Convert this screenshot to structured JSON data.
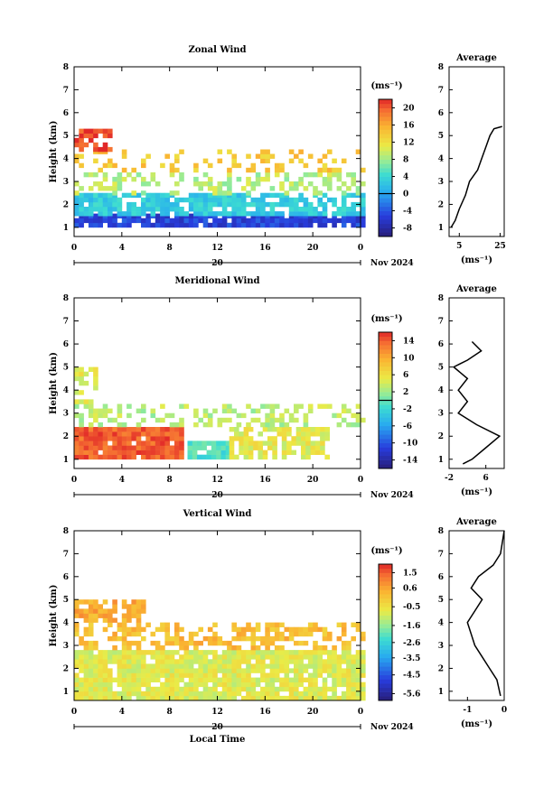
{
  "date_label": "Nov 2024",
  "date_day": "20",
  "xlabel": "Local Time",
  "ylabel": "Height (km)",
  "avg_title": "Average",
  "unit_label": "(ms⁻¹)",
  "x_ticks": [
    "0",
    "4",
    "8",
    "12",
    "16",
    "20",
    "0"
  ],
  "y_ticks": [
    "1",
    "2",
    "3",
    "4",
    "5",
    "6",
    "7",
    "8"
  ],
  "chart_data": [
    {
      "type": "heatmap",
      "title": "Zonal Wind",
      "xlabel": "",
      "ylabel": "Height (km)",
      "xlim": [
        0,
        24
      ],
      "ylim": [
        0.6,
        8
      ],
      "colorbar": {
        "ticks": [
          20,
          16,
          12,
          8,
          4,
          0,
          -4,
          -8
        ],
        "min": -10,
        "max": 22
      },
      "layers": [
        {
          "x": [
            0,
            24
          ],
          "y": [
            1.0,
            1.5
          ],
          "value": -5,
          "step": 0.4,
          "density": 0.9
        },
        {
          "x": [
            0,
            24
          ],
          "y": [
            1.5,
            2.4
          ],
          "value": 3,
          "step": 0.4,
          "density": 0.8
        },
        {
          "x": [
            0,
            24
          ],
          "y": [
            2.4,
            3.4
          ],
          "value": 9,
          "step": 0.4,
          "density": 0.35
        },
        {
          "x": [
            0,
            24
          ],
          "y": [
            3.4,
            4.3
          ],
          "value": 14,
          "step": 0.4,
          "density": 0.25
        },
        {
          "x": [
            0,
            3
          ],
          "y": [
            4.3,
            5.3
          ],
          "value": 21,
          "step": 0.4,
          "density": 0.6
        }
      ],
      "average_profile": {
        "xlim": [
          0,
          27
        ],
        "xticks": [
          5,
          25
        ],
        "height": [
          1.0,
          1.3,
          1.8,
          2.4,
          3.0,
          3.5,
          4.0,
          4.5,
          5.0,
          5.3,
          5.4
        ],
        "value": [
          1,
          3,
          5,
          8,
          10,
          14,
          16,
          18,
          20,
          22,
          26
        ]
      },
      "zero_line_in_colorbar": true
    },
    {
      "type": "heatmap",
      "title": "Meridional Wind",
      "xlabel": "",
      "ylabel": "Height (km)",
      "xlim": [
        0,
        24
      ],
      "ylim": [
        0.6,
        8
      ],
      "colorbar": {
        "ticks": [
          14,
          10,
          6,
          2,
          -2,
          -6,
          -10,
          -14
        ],
        "min": -16,
        "max": 16
      },
      "layers": [
        {
          "x": [
            0,
            9
          ],
          "y": [
            1.0,
            2.4
          ],
          "value": 14,
          "step": 0.4,
          "density": 0.9
        },
        {
          "x": [
            9.5,
            13
          ],
          "y": [
            1.0,
            1.6
          ],
          "value": -1,
          "step": 0.4,
          "density": 0.9
        },
        {
          "x": [
            13,
            21
          ],
          "y": [
            1.0,
            2.4
          ],
          "value": 5,
          "step": 0.4,
          "density": 0.7
        },
        {
          "x": [
            0,
            24
          ],
          "y": [
            2.4,
            3.4
          ],
          "value": 3,
          "step": 0.4,
          "density": 0.4
        },
        {
          "x": [
            0,
            2
          ],
          "y": [
            3.4,
            5.0
          ],
          "value": 5,
          "step": 0.4,
          "density": 0.5
        }
      ],
      "average_profile": {
        "xlim": [
          -2,
          10
        ],
        "xticks": [
          -2,
          6
        ],
        "height": [
          0.8,
          1.0,
          1.5,
          2.0,
          2.5,
          3.0,
          3.5,
          4.0,
          4.5,
          5.0,
          5.3,
          5.7,
          6.1
        ],
        "value": [
          1,
          3,
          6,
          9,
          4,
          0,
          2,
          0,
          2,
          -1,
          2,
          5,
          3
        ]
      },
      "zero_line_in_colorbar": true
    },
    {
      "type": "heatmap",
      "title": "Vertical Wind",
      "xlabel": "Local Time",
      "ylabel": "Height (km)",
      "xlim": [
        0,
        24
      ],
      "ylim": [
        0.6,
        8
      ],
      "colorbar": {
        "ticks": [
          1.5,
          0.6,
          -0.5,
          -1.6,
          -2.6,
          -3.5,
          -4.5,
          -5.6
        ],
        "min": -6,
        "max": 2
      },
      "layers": [
        {
          "x": [
            0,
            24
          ],
          "y": [
            0.6,
            2.8
          ],
          "value": -0.8,
          "step": 0.4,
          "density": 0.9
        },
        {
          "x": [
            0,
            24
          ],
          "y": [
            2.8,
            4.0
          ],
          "value": 0.2,
          "step": 0.4,
          "density": 0.5
        },
        {
          "x": [
            0,
            6
          ],
          "y": [
            4.0,
            5.0
          ],
          "value": 0.5,
          "step": 0.4,
          "density": 0.6
        }
      ],
      "average_profile": {
        "xlim": [
          -1.5,
          0
        ],
        "xticks": [
          -1,
          0
        ],
        "height": [
          0.8,
          1.5,
          2.0,
          2.5,
          3.0,
          3.5,
          4.0,
          4.5,
          5.0,
          5.5,
          6.0,
          6.5,
          7.0,
          8.0
        ],
        "value": [
          -0.1,
          -0.2,
          -0.4,
          -0.6,
          -0.8,
          -0.9,
          -1.0,
          -0.8,
          -0.6,
          -0.9,
          -0.7,
          -0.3,
          -0.1,
          0
        ]
      },
      "zero_line_in_colorbar": false
    }
  ]
}
